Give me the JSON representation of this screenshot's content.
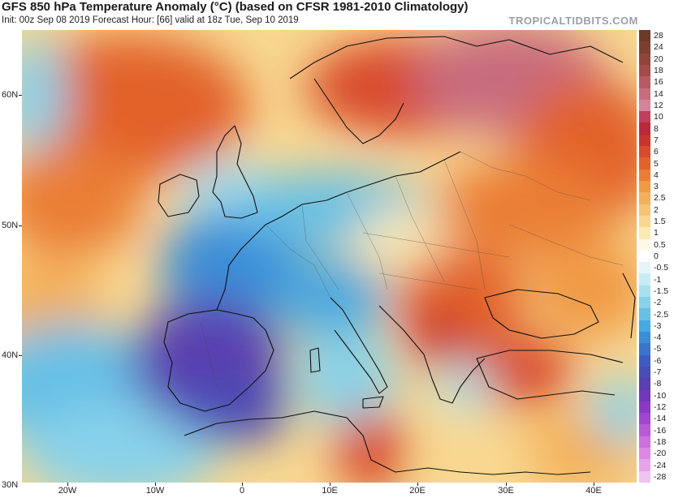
{
  "header": {
    "title": "GFS 850 hPa Temperature Anomaly (°C) (based on CFSR 1981-2010 Climatology)",
    "subtitle": "Init: 00z Sep 08 2019   Forecast Hour: [66]   valid at 18z Tue, Sep 10 2019",
    "watermark": "TROPICALTIDBITS.COM"
  },
  "map": {
    "variable": "850 hPa temperature anomaly",
    "units": "°C",
    "latitude_labels": [
      "60N",
      "50N",
      "40N",
      "30N"
    ],
    "longitude_labels": [
      "20W",
      "10W",
      "0",
      "10E",
      "20E",
      "30E",
      "40E"
    ]
  },
  "colorbar": {
    "levels": [
      "28",
      "24",
      "20",
      "18",
      "16",
      "14",
      "12",
      "10",
      "8",
      "7",
      "6",
      "5",
      "4",
      "3",
      "2.5",
      "2",
      "1.5",
      "1",
      "0.5",
      "0",
      "-0.5",
      "-1",
      "-1.5",
      "-2",
      "-2.5",
      "-3",
      "-4",
      "-5",
      "-6",
      "-7",
      "-8",
      "-10",
      "-12",
      "-14",
      "-16",
      "-18",
      "-20",
      "-24",
      "-28"
    ],
    "colors": [
      "#6b3b2a",
      "#7d4030",
      "#8f4638",
      "#a34a4a",
      "#b85a64",
      "#c86c7e",
      "#d4849a",
      "#c0405e",
      "#b82a3c",
      "#c8342e",
      "#d84a2a",
      "#e2622c",
      "#ea7e34",
      "#f09a44",
      "#f4b058",
      "#f6c474",
      "#f8d890",
      "#faeab4",
      "#fdf8e8",
      "#ffffff",
      "#e6f4f8",
      "#c8ecf4",
      "#a8e0ee",
      "#88d2ea",
      "#66c0e6",
      "#48a8e0",
      "#3a8ed8",
      "#3a74cc",
      "#3e5cc0",
      "#4a4cb6",
      "#5a40b0",
      "#7038b8",
      "#8a3ac4",
      "#a048cc",
      "#b85ad4",
      "#cc70dc",
      "#dc88e4",
      "#e6a4ea",
      "#eec4f0"
    ]
  }
}
